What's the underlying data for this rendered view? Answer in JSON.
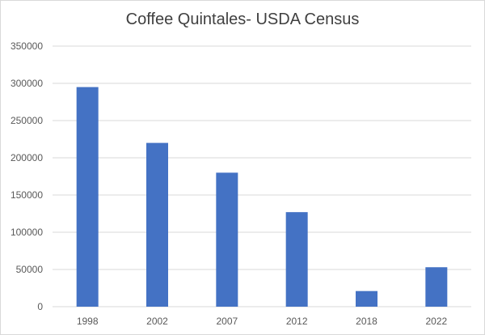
{
  "chart_data": {
    "type": "bar",
    "title": "Coffee Quintales- USDA Census",
    "xlabel": "",
    "ylabel": "",
    "categories": [
      "1998",
      "2002",
      "2007",
      "2012",
      "2018",
      "2022"
    ],
    "values": [
      295000,
      220000,
      180000,
      127000,
      21000,
      53000
    ],
    "ylim": [
      0,
      350000
    ],
    "yticks": [
      "0",
      "50000",
      "100000",
      "150000",
      "200000",
      "250000",
      "300000",
      "350000"
    ],
    "grid": true,
    "legend": "none",
    "bar_color": "#4472C4",
    "grid_color": "#d9d9d9"
  }
}
